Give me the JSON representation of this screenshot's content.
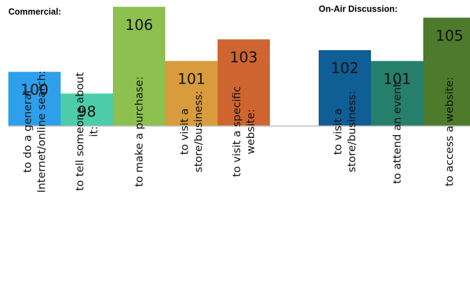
{
  "chart_data": {
    "type": "bar",
    "groups": [
      {
        "title": "Commercial:",
        "bars": [
          {
            "category_lines": [
              "to do a general",
              "Internet/online search:"
            ],
            "value": 100,
            "color": "#2E9FEA"
          },
          {
            "category_lines": [
              "to tell someone about",
              "it:"
            ],
            "value": 98,
            "color": "#4DCCAA"
          },
          {
            "category_lines": [
              "to make a purchase:"
            ],
            "value": 106,
            "color": "#8DC04F"
          },
          {
            "category_lines": [
              "to visit a",
              "store/business:"
            ],
            "value": 101,
            "color": "#D99C3C"
          },
          {
            "category_lines": [
              "to visit a specific",
              "website:"
            ],
            "value": 103,
            "color": "#CF6530"
          }
        ]
      },
      {
        "title": "On-Air Discussion:",
        "bars": [
          {
            "category_lines": [
              "to visit a",
              "store/business:"
            ],
            "value": 102,
            "color": "#0F5E96"
          },
          {
            "category_lines": [
              "to attend an event:"
            ],
            "value": 101,
            "color": "#257F6A"
          },
          {
            "category_lines": [
              "to access a website:"
            ],
            "value": 105,
            "color": "#4E7B2B"
          }
        ]
      }
    ],
    "ylim": [
      95,
      106.5
    ],
    "grid": false,
    "legend": "none"
  }
}
